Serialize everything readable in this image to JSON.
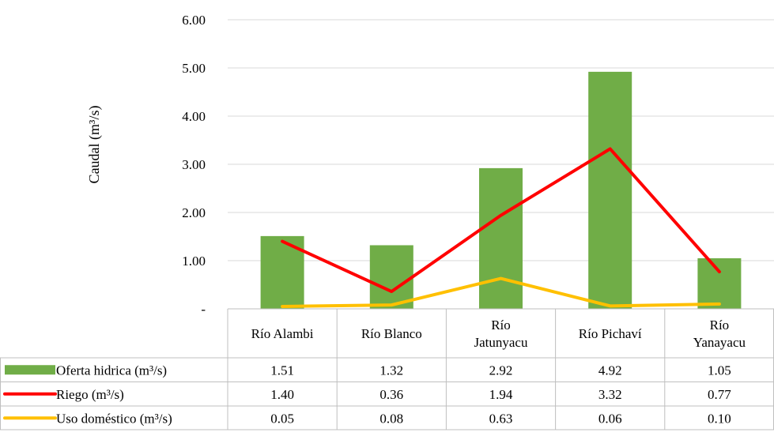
{
  "chart_data": {
    "type": "bar",
    "ylabel": "Caudal (m³/s)",
    "ylim": [
      0,
      6
    ],
    "y_ticks": [
      {
        "value": 0,
        "label": "-"
      },
      {
        "value": 1,
        "label": "1.00"
      },
      {
        "value": 2,
        "label": "2.00"
      },
      {
        "value": 3,
        "label": "3.00"
      },
      {
        "value": 4,
        "label": "4.00"
      },
      {
        "value": 5,
        "label": "5.00"
      },
      {
        "value": 6,
        "label": "6.00"
      }
    ],
    "grid": true,
    "legend": "data-table",
    "categories": [
      [
        "Río Alambi"
      ],
      [
        "Río Blanco"
      ],
      [
        "Río",
        "Jatunyacu"
      ],
      [
        "Río Pichaví"
      ],
      [
        "Río",
        "Yanayacu"
      ]
    ],
    "series": [
      {
        "name": "Oferta hidrica (m³/s)",
        "kind": "bar",
        "color": "#70AD47",
        "values": [
          1.51,
          1.32,
          2.92,
          4.92,
          1.05
        ],
        "labels": [
          "1.51",
          "1.32",
          "2.92",
          "4.92",
          "1.05"
        ]
      },
      {
        "name": "Riego (m³/s)",
        "kind": "line",
        "color": "#FF0000",
        "values": [
          1.4,
          0.36,
          1.94,
          3.32,
          0.77
        ],
        "labels": [
          "1.40",
          "0.36",
          "1.94",
          "3.32",
          "0.77"
        ]
      },
      {
        "name": "Uso doméstico (m³/s)",
        "kind": "line",
        "color": "#FFC000",
        "values": [
          0.05,
          0.08,
          0.63,
          0.06,
          0.1
        ],
        "labels": [
          "0.05",
          "0.08",
          "0.63",
          "0.06",
          "0.10"
        ]
      }
    ]
  }
}
